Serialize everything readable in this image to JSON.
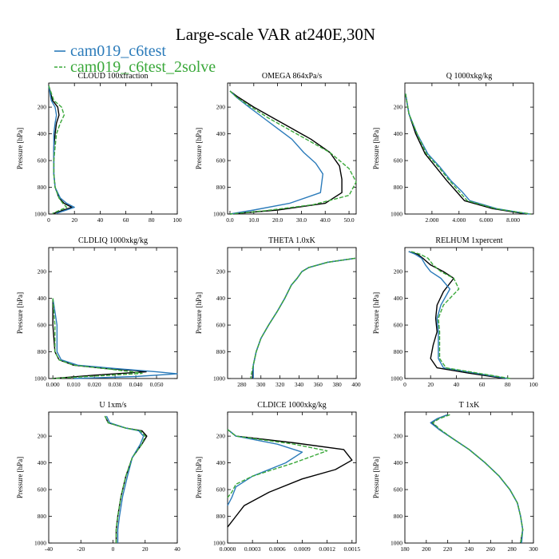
{
  "figure": {
    "title": "Large-scale VAR at240E,30N",
    "legend": [
      {
        "label": "cam019_c6test",
        "color": "#2b7bba",
        "dashed": false
      },
      {
        "label": "cam019_c6test_2solve",
        "color": "#3aa83a",
        "dashed": true
      }
    ]
  },
  "chart_data": [
    {
      "type": "line",
      "title": "CLOUD 100xfraction",
      "ylabel": "Pressure [hPa]",
      "xlim": [
        0,
        100
      ],
      "ylim": [
        1000,
        20
      ],
      "xticks": [
        0,
        20,
        40,
        60,
        80,
        100
      ],
      "xticklabels": [
        "0",
        "20",
        "40",
        "60",
        "80",
        "100"
      ],
      "yticks": [
        200,
        400,
        600,
        800,
        1000
      ],
      "series": [
        {
          "color": "#000000",
          "dashed": false,
          "x": [
            0,
            3,
            7,
            8,
            6,
            5,
            4,
            4,
            4,
            5,
            8,
            12,
            18,
            4
          ],
          "y": [
            40,
            150,
            200,
            260,
            320,
            400,
            500,
            600,
            700,
            800,
            880,
            920,
            950,
            995
          ]
        },
        {
          "color": "#2b7bba",
          "dashed": false,
          "x": [
            0,
            2,
            5,
            6,
            5,
            4,
            4,
            4,
            4,
            5,
            9,
            14,
            20,
            6
          ],
          "y": [
            40,
            150,
            200,
            260,
            320,
            400,
            500,
            600,
            700,
            800,
            880,
            920,
            950,
            995
          ]
        },
        {
          "color": "#3aa83a",
          "dashed": true,
          "x": [
            0,
            4,
            10,
            12,
            9,
            6,
            5,
            4,
            4,
            5,
            8,
            11,
            14,
            3
          ],
          "y": [
            40,
            150,
            200,
            260,
            320,
            400,
            500,
            600,
            700,
            800,
            880,
            920,
            950,
            995
          ]
        }
      ]
    },
    {
      "type": "line",
      "title": "OMEGA 864xPa/s",
      "ylabel": "Pressure [hPa]",
      "xlim": [
        -1,
        53
      ],
      "ylim": [
        1000,
        20
      ],
      "xticks": [
        0,
        10,
        20,
        30,
        40,
        50
      ],
      "xticklabels": [
        "0.0",
        "10.0",
        "20.0",
        "30.0",
        "40.0",
        "50.0"
      ],
      "yticks": [
        200,
        400,
        600,
        800,
        1000
      ],
      "series": [
        {
          "color": "#000000",
          "dashed": false,
          "x": [
            0,
            3,
            10,
            18,
            26,
            34,
            42,
            46,
            47,
            47,
            40,
            20,
            0
          ],
          "y": [
            80,
            120,
            200,
            280,
            360,
            440,
            540,
            640,
            740,
            840,
            920,
            970,
            1000
          ]
        },
        {
          "color": "#2b7bba",
          "dashed": false,
          "x": [
            0,
            3,
            8,
            14,
            20,
            26,
            31,
            36,
            39,
            38,
            25,
            10,
            0
          ],
          "y": [
            80,
            130,
            200,
            280,
            360,
            440,
            540,
            620,
            700,
            840,
            920,
            970,
            1000
          ]
        },
        {
          "color": "#3aa83a",
          "dashed": true,
          "x": [
            0,
            3,
            9,
            16,
            24,
            32,
            42,
            50,
            53,
            50,
            35,
            15,
            0
          ],
          "y": [
            80,
            130,
            200,
            280,
            360,
            440,
            540,
            660,
            760,
            860,
            930,
            975,
            1000
          ]
        }
      ]
    },
    {
      "type": "line",
      "title": "Q 1000xkg/kg",
      "ylabel": "Pressure [hPa]",
      "xlim": [
        0,
        9.5
      ],
      "ylim": [
        1000,
        20
      ],
      "xticks": [
        2,
        4,
        6,
        8
      ],
      "xticklabels": [
        "2.000",
        "4.000",
        "6.000",
        "8.000"
      ],
      "yticks": [
        200,
        400,
        600,
        800,
        1000
      ],
      "series": [
        {
          "color": "#000000",
          "dashed": false,
          "x": [
            0.05,
            0.3,
            0.8,
            1.5,
            2.3,
            3.1,
            3.8,
            4.4,
            6.5,
            9.0
          ],
          "y": [
            100,
            250,
            400,
            550,
            650,
            750,
            830,
            900,
            960,
            1000
          ]
        },
        {
          "color": "#2b7bba",
          "dashed": false,
          "x": [
            0.05,
            0.3,
            0.9,
            1.7,
            2.6,
            3.4,
            4.2,
            4.8,
            6.8,
            9.2
          ],
          "y": [
            100,
            250,
            400,
            550,
            650,
            750,
            830,
            900,
            960,
            1000
          ]
        },
        {
          "color": "#3aa83a",
          "dashed": true,
          "x": [
            0.05,
            0.3,
            0.9,
            1.6,
            2.5,
            3.3,
            4.0,
            4.6,
            6.7,
            9.3
          ],
          "y": [
            100,
            250,
            400,
            550,
            650,
            750,
            830,
            900,
            960,
            1000
          ]
        }
      ]
    },
    {
      "type": "line",
      "title": "CLDLIQ 1000xkg/kg",
      "ylabel": "Pressure [hPa]",
      "xlim": [
        -0.002,
        0.06
      ],
      "ylim": [
        1000,
        20
      ],
      "xticks": [
        0,
        0.01,
        0.02,
        0.03,
        0.04,
        0.05
      ],
      "xticklabels": [
        "0.000",
        "0.010",
        "0.020",
        "0.030",
        "0.040",
        "0.050"
      ],
      "yticks": [
        200,
        400,
        600,
        800,
        1000
      ],
      "series": [
        {
          "color": "#000000",
          "dashed": false,
          "x": [
            0,
            0,
            0.001,
            0.003,
            0.01,
            0.025,
            0.04,
            0.045,
            0.02,
            0
          ],
          "y": [
            400,
            600,
            800,
            860,
            900,
            925,
            940,
            950,
            975,
            1000
          ]
        },
        {
          "color": "#2b7bba",
          "dashed": false,
          "x": [
            0,
            0.002,
            0.002,
            0.004,
            0.012,
            0.03,
            0.05,
            0.06,
            0.04,
            0.01
          ],
          "y": [
            400,
            600,
            800,
            860,
            900,
            925,
            950,
            965,
            985,
            1000
          ]
        },
        {
          "color": "#3aa83a",
          "dashed": true,
          "x": [
            0,
            0.001,
            0.001,
            0.003,
            0.01,
            0.025,
            0.038,
            0.043,
            0.02,
            0
          ],
          "y": [
            400,
            600,
            800,
            860,
            900,
            925,
            950,
            962,
            982,
            1000
          ]
        }
      ]
    },
    {
      "type": "line",
      "title": "THETA 1.0xK",
      "ylabel": "Pressure [hPa]",
      "xlim": [
        265,
        400
      ],
      "ylim": [
        1000,
        20
      ],
      "xticks": [
        280,
        300,
        320,
        340,
        360,
        380,
        400
      ],
      "xticklabels": [
        "280",
        "300",
        "320",
        "340",
        "360",
        "380",
        "400"
      ],
      "yticks": [
        200,
        400,
        600,
        800,
        1000
      ],
      "series": [
        {
          "color": "#000000",
          "dashed": false,
          "x": [
            399,
            370,
            350,
            343,
            338,
            332,
            325,
            317,
            308,
            300,
            295,
            292,
            291
          ],
          "y": [
            100,
            130,
            170,
            200,
            250,
            300,
            400,
            500,
            600,
            700,
            800,
            900,
            1000
          ]
        },
        {
          "color": "#2b7bba",
          "dashed": false,
          "x": [
            399,
            370,
            350,
            343,
            338,
            332,
            325,
            317,
            308,
            300,
            295,
            292,
            292
          ],
          "y": [
            100,
            130,
            170,
            200,
            250,
            300,
            400,
            500,
            600,
            700,
            800,
            900,
            1000
          ]
        },
        {
          "color": "#3aa83a",
          "dashed": true,
          "x": [
            399,
            370,
            350,
            343,
            338,
            332,
            325,
            317,
            308,
            300,
            295,
            292,
            289
          ],
          "y": [
            100,
            130,
            170,
            200,
            250,
            300,
            400,
            500,
            600,
            700,
            800,
            900,
            1000
          ]
        }
      ]
    },
    {
      "type": "line",
      "title": "RELHUM 1xpercent",
      "ylabel": "Pressure [hPa]",
      "xlim": [
        0,
        100
      ],
      "ylim": [
        1000,
        20
      ],
      "xticks": [
        0,
        20,
        40,
        60,
        80,
        100
      ],
      "xticklabels": [
        "0",
        "20",
        "40",
        "60",
        "80",
        "100"
      ],
      "yticks": [
        200,
        400,
        600,
        800,
        1000
      ],
      "series": [
        {
          "color": "#000000",
          "dashed": false,
          "x": [
            3,
            10,
            14,
            20,
            30,
            38,
            30,
            25,
            24,
            25,
            22,
            20,
            25,
            50,
            78
          ],
          "y": [
            50,
            70,
            100,
            150,
            200,
            250,
            350,
            450,
            550,
            650,
            750,
            850,
            920,
            960,
            1000
          ]
        },
        {
          "color": "#2b7bba",
          "dashed": false,
          "x": [
            3,
            8,
            13,
            16,
            20,
            28,
            35,
            28,
            25,
            26,
            26,
            26,
            30,
            55,
            80
          ],
          "y": [
            50,
            70,
            100,
            150,
            200,
            250,
            330,
            450,
            550,
            650,
            750,
            850,
            920,
            960,
            1000
          ]
        },
        {
          "color": "#3aa83a",
          "dashed": true,
          "x": [
            5,
            12,
            18,
            22,
            28,
            38,
            42,
            30,
            26,
            27,
            27,
            27,
            32,
            57,
            82
          ],
          "y": [
            50,
            70,
            100,
            150,
            200,
            250,
            330,
            450,
            550,
            650,
            750,
            850,
            920,
            960,
            1000
          ]
        }
      ]
    },
    {
      "type": "line",
      "title": "U 1xm/s",
      "ylabel": "Pressure [hPa]",
      "xlim": [
        -40,
        40
      ],
      "ylim": [
        1000,
        20
      ],
      "xticks": [
        -40,
        -20,
        0,
        20,
        40
      ],
      "xticklabels": [
        "-40",
        "-20",
        "0",
        "20",
        "40"
      ],
      "yticks": [
        200,
        400,
        600,
        800,
        1000
      ],
      "series": [
        {
          "color": "#000000",
          "dashed": false,
          "x": [
            -5,
            -3,
            8,
            18,
            21,
            18,
            12,
            8,
            5,
            3,
            2,
            2
          ],
          "y": [
            50,
            100,
            140,
            160,
            200,
            260,
            360,
            500,
            650,
            800,
            900,
            1000
          ]
        },
        {
          "color": "#2b7bba",
          "dashed": false,
          "x": [
            -4,
            -2,
            8,
            16,
            19,
            17,
            12,
            9,
            6,
            4,
            3,
            3
          ],
          "y": [
            50,
            100,
            140,
            160,
            200,
            260,
            360,
            500,
            650,
            800,
            900,
            1000
          ]
        },
        {
          "color": "#3aa83a",
          "dashed": true,
          "x": [
            -5,
            -3,
            8,
            17,
            20,
            18,
            12,
            8,
            5,
            3,
            2,
            2
          ],
          "y": [
            50,
            100,
            140,
            160,
            200,
            260,
            360,
            500,
            650,
            800,
            900,
            1000
          ]
        }
      ]
    },
    {
      "type": "line",
      "title": "CLDICE 1000xkg/kg",
      "ylabel": "Pressure [hPa]",
      "xlim": [
        0,
        0.00155
      ],
      "ylim": [
        1000,
        20
      ],
      "xticks": [
        0,
        0.0003,
        0.0006,
        0.0009,
        0.0012,
        0.0015
      ],
      "xticklabels": [
        "0.0000",
        "0.0003",
        "0.0006",
        "0.0009",
        "0.0012",
        "0.0015"
      ],
      "yticks": [
        200,
        400,
        600,
        800,
        1000
      ],
      "series": [
        {
          "color": "#000000",
          "dashed": false,
          "x": [
            0,
            0.0001,
            0.0008,
            0.0014,
            0.0015,
            0.0013,
            0.0009,
            0.0005,
            0.0002,
            0.0001,
            0
          ],
          "y": [
            150,
            200,
            250,
            300,
            380,
            450,
            520,
            620,
            720,
            800,
            880
          ]
        },
        {
          "color": "#2b7bba",
          "dashed": false,
          "x": [
            0,
            0.0001,
            0.0006,
            0.0009,
            0.0007,
            0.0003,
            0.0001,
            5e-05,
            0
          ],
          "y": [
            150,
            200,
            260,
            320,
            400,
            500,
            580,
            660,
            720
          ]
        },
        {
          "color": "#3aa83a",
          "dashed": true,
          "x": [
            0,
            0.0001,
            0.0008,
            0.0012,
            0.0008,
            0.0003,
            0.0001,
            5e-05,
            0
          ],
          "y": [
            150,
            200,
            260,
            310,
            400,
            500,
            560,
            620,
            660
          ]
        }
      ]
    },
    {
      "type": "line",
      "title": "T 1xK",
      "ylabel": "Pressure [hPa]",
      "xlim": [
        180,
        300
      ],
      "ylim": [
        1000,
        20
      ],
      "xticks": [
        180,
        200,
        220,
        240,
        260,
        280,
        300
      ],
      "xticklabels": [
        "180",
        "200",
        "220",
        "240",
        "260",
        "280",
        "300"
      ],
      "yticks": [
        200,
        400,
        600,
        800,
        1000
      ],
      "series": [
        {
          "color": "#000000",
          "dashed": false,
          "x": [
            220,
            210,
            205,
            212,
            225,
            240,
            255,
            268,
            278,
            285,
            288,
            290,
            288
          ],
          "y": [
            40,
            70,
            100,
            150,
            220,
            300,
            400,
            500,
            600,
            700,
            800,
            900,
            1000
          ]
        },
        {
          "color": "#2b7bba",
          "dashed": false,
          "x": [
            220,
            210,
            204,
            212,
            225,
            240,
            255,
            268,
            278,
            285,
            288,
            290,
            289
          ],
          "y": [
            40,
            70,
            100,
            150,
            220,
            300,
            400,
            500,
            600,
            700,
            800,
            900,
            1000
          ]
        },
        {
          "color": "#3aa83a",
          "dashed": true,
          "x": [
            222,
            212,
            206,
            213,
            225,
            240,
            255,
            268,
            278,
            285,
            288,
            290,
            288
          ],
          "y": [
            40,
            70,
            100,
            150,
            220,
            300,
            400,
            500,
            600,
            700,
            800,
            900,
            1000
          ]
        }
      ]
    }
  ]
}
